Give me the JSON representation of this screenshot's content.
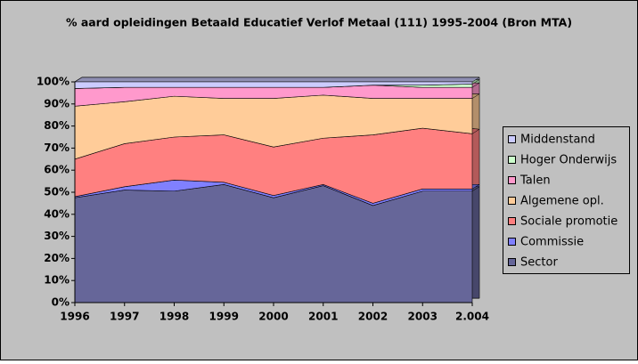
{
  "chart_data": {
    "type": "stacked-area-100",
    "title": "% aard opleidingen Betaald Educatief Verlof Metaal (111) 1995-2004 (Bron MTA)",
    "categories": [
      "1996",
      "1997",
      "1998",
      "1999",
      "2000",
      "2001",
      "2002",
      "2003",
      "2.004"
    ],
    "series": [
      {
        "name": "Sector",
        "color": "#666699",
        "values": [
          47.5,
          51,
          50.5,
          53.5,
          47.5,
          53,
          44,
          50.5,
          50.5
        ]
      },
      {
        "name": "Commissie",
        "color": "#8080ff",
        "values": [
          0.5,
          1.5,
          5,
          1,
          1,
          0.5,
          1,
          1,
          1
        ]
      },
      {
        "name": "Sociale promotie",
        "color": "#ff8080",
        "values": [
          17,
          19.5,
          19.5,
          21.5,
          22,
          21,
          31,
          27.5,
          25
        ]
      },
      {
        "name": "Algemene opl.",
        "color": "#ffcc99",
        "values": [
          24,
          19,
          18.5,
          16.5,
          22,
          19.5,
          16.5,
          13.5,
          16
        ]
      },
      {
        "name": "Talen",
        "color": "#ff99cc",
        "values": [
          8,
          6.5,
          4,
          5,
          5,
          3.5,
          6,
          5,
          5
        ]
      },
      {
        "name": "Hoger Onderwijs",
        "color": "#ccffcc",
        "values": [
          0,
          0,
          0,
          0,
          0,
          0,
          0,
          1,
          1.5
        ]
      },
      {
        "name": "Middenstand",
        "color": "#ccccff",
        "values": [
          3,
          2.5,
          2.5,
          2.5,
          2.5,
          2.5,
          1.5,
          1.5,
          1
        ]
      }
    ],
    "ylim": [
      0,
      100
    ],
    "yticks": [
      {
        "value": 0,
        "label": "0%"
      },
      {
        "value": 10,
        "label": "10%"
      },
      {
        "value": 20,
        "label": "20%"
      },
      {
        "value": 30,
        "label": "30%"
      },
      {
        "value": 40,
        "label": "40%"
      },
      {
        "value": 50,
        "label": "50%"
      },
      {
        "value": 60,
        "label": "60%"
      },
      {
        "value": 70,
        "label": "70%"
      },
      {
        "value": 80,
        "label": "80%"
      },
      {
        "value": 90,
        "label": "90%"
      },
      {
        "value": 100,
        "label": "100%"
      }
    ],
    "grid": true
  }
}
